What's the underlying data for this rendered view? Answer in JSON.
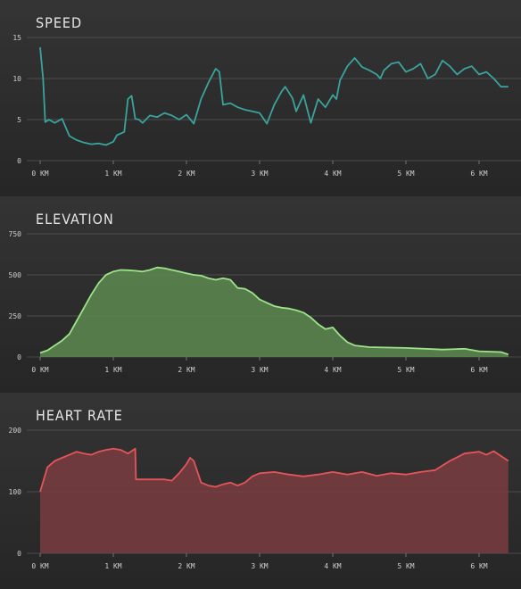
{
  "colors": {
    "background_light": "#343434",
    "background_dark": "#262626",
    "grid": "#888888",
    "speed": "#3aa39d",
    "elevation_line": "#9de38a",
    "elevation_fill": "#5c8a4f",
    "heart_line": "#e4555a",
    "heart_fill": "#7a3c3f"
  },
  "chart_data": [
    {
      "type": "line",
      "title": "SPEED",
      "x_ticks": [
        "0 KM",
        "1 KM",
        "2 KM",
        "3 KM",
        "4 KM",
        "5 KM",
        "6 KM"
      ],
      "y_ticks": [
        "0",
        "5",
        "10",
        "15"
      ],
      "xlim": [
        0,
        6.4
      ],
      "ylim": [
        0,
        15
      ],
      "x": [
        0,
        0.04,
        0.07,
        0.12,
        0.2,
        0.3,
        0.4,
        0.5,
        0.6,
        0.7,
        0.8,
        0.9,
        1.0,
        1.05,
        1.15,
        1.2,
        1.25,
        1.3,
        1.35,
        1.4,
        1.5,
        1.6,
        1.7,
        1.8,
        1.9,
        2.0,
        2.1,
        2.2,
        2.3,
        2.4,
        2.45,
        2.5,
        2.6,
        2.7,
        2.8,
        2.9,
        3.0,
        3.1,
        3.2,
        3.3,
        3.35,
        3.45,
        3.5,
        3.6,
        3.7,
        3.8,
        3.9,
        4.0,
        4.05,
        4.1,
        4.2,
        4.3,
        4.4,
        4.5,
        4.6,
        4.65,
        4.7,
        4.8,
        4.9,
        5.0,
        5.1,
        5.2,
        5.3,
        5.4,
        5.5,
        5.6,
        5.7,
        5.8,
        5.9,
        6.0,
        6.1,
        6.2,
        6.3,
        6.4
      ],
      "series": [
        {
          "values": [
            13.8,
            10,
            4.7,
            5,
            4.6,
            5.1,
            3,
            2.5,
            2.2,
            2.0,
            2.1,
            1.9,
            2.3,
            3.1,
            3.5,
            7.5,
            7.9,
            5.1,
            5.0,
            4.6,
            5.5,
            5.3,
            5.8,
            5.5,
            5.0,
            5.6,
            4.5,
            7.5,
            9.5,
            11.2,
            10.8,
            6.8,
            7.0,
            6.5,
            6.2,
            6.0,
            5.8,
            4.5,
            6.8,
            8.4,
            9.0,
            7.6,
            6.0,
            8.0,
            4.6,
            7.5,
            6.5,
            8.0,
            7.5,
            9.8,
            11.5,
            12.5,
            11.4,
            11.0,
            10.5,
            10.0,
            11.0,
            11.8,
            12.0,
            10.8,
            11.2,
            11.8,
            10.0,
            10.5,
            12.2,
            11.5,
            10.5,
            11.2,
            11.5,
            10.5,
            10.8,
            10.0,
            9.0,
            9.0
          ]
        }
      ]
    },
    {
      "type": "area",
      "title": "ELEVATION",
      "x_ticks": [
        "0 KM",
        "1 KM",
        "2 KM",
        "3 KM",
        "4 KM",
        "5 KM",
        "6 KM"
      ],
      "y_ticks": [
        "0",
        "250",
        "500",
        "750"
      ],
      "xlim": [
        0,
        6.4
      ],
      "ylim": [
        0,
        750
      ],
      "x": [
        0,
        0.1,
        0.2,
        0.3,
        0.4,
        0.5,
        0.6,
        0.7,
        0.8,
        0.9,
        1.0,
        1.1,
        1.2,
        1.3,
        1.4,
        1.5,
        1.6,
        1.7,
        1.8,
        1.9,
        2.0,
        2.1,
        2.2,
        2.3,
        2.4,
        2.5,
        2.6,
        2.7,
        2.8,
        2.9,
        3.0,
        3.1,
        3.2,
        3.3,
        3.4,
        3.5,
        3.6,
        3.7,
        3.8,
        3.9,
        4.0,
        4.1,
        4.2,
        4.3,
        4.5,
        5.0,
        5.5,
        5.8,
        6.0,
        6.3,
        6.4
      ],
      "series": [
        {
          "values": [
            25,
            40,
            70,
            100,
            140,
            220,
            300,
            380,
            450,
            500,
            520,
            530,
            528,
            525,
            520,
            530,
            545,
            540,
            530,
            520,
            510,
            500,
            495,
            480,
            470,
            480,
            470,
            420,
            415,
            390,
            350,
            330,
            310,
            300,
            295,
            285,
            270,
            240,
            200,
            170,
            180,
            130,
            90,
            70,
            60,
            55,
            45,
            50,
            35,
            30,
            15
          ]
        }
      ]
    },
    {
      "type": "area",
      "title": "HEART RATE",
      "x_ticks": [
        "0 KM",
        "1 KM",
        "2 KM",
        "3 KM",
        "4 KM",
        "5 KM",
        "6 KM"
      ],
      "y_ticks": [
        "0",
        "100",
        "200"
      ],
      "xlim": [
        0,
        6.4
      ],
      "ylim": [
        0,
        200
      ],
      "x": [
        0,
        0.1,
        0.2,
        0.3,
        0.4,
        0.5,
        0.6,
        0.7,
        0.8,
        0.9,
        1.0,
        1.1,
        1.2,
        1.3,
        1.31,
        1.4,
        1.5,
        1.6,
        1.7,
        1.8,
        1.9,
        2.0,
        2.05,
        2.1,
        2.2,
        2.3,
        2.4,
        2.5,
        2.6,
        2.7,
        2.8,
        2.9,
        3.0,
        3.2,
        3.4,
        3.6,
        3.8,
        4.0,
        4.2,
        4.4,
        4.6,
        4.8,
        5.0,
        5.2,
        5.4,
        5.6,
        5.8,
        6.0,
        6.1,
        6.2,
        6.3,
        6.4
      ],
      "series": [
        {
          "values": [
            100,
            140,
            150,
            155,
            160,
            165,
            162,
            160,
            165,
            168,
            170,
            168,
            162,
            170,
            120,
            120,
            120,
            120,
            120,
            118,
            130,
            145,
            155,
            150,
            115,
            110,
            108,
            112,
            115,
            110,
            115,
            125,
            130,
            132,
            128,
            125,
            128,
            132,
            128,
            132,
            126,
            130,
            128,
            132,
            135,
            150,
            162,
            165,
            160,
            166,
            158,
            150
          ]
        }
      ]
    }
  ]
}
